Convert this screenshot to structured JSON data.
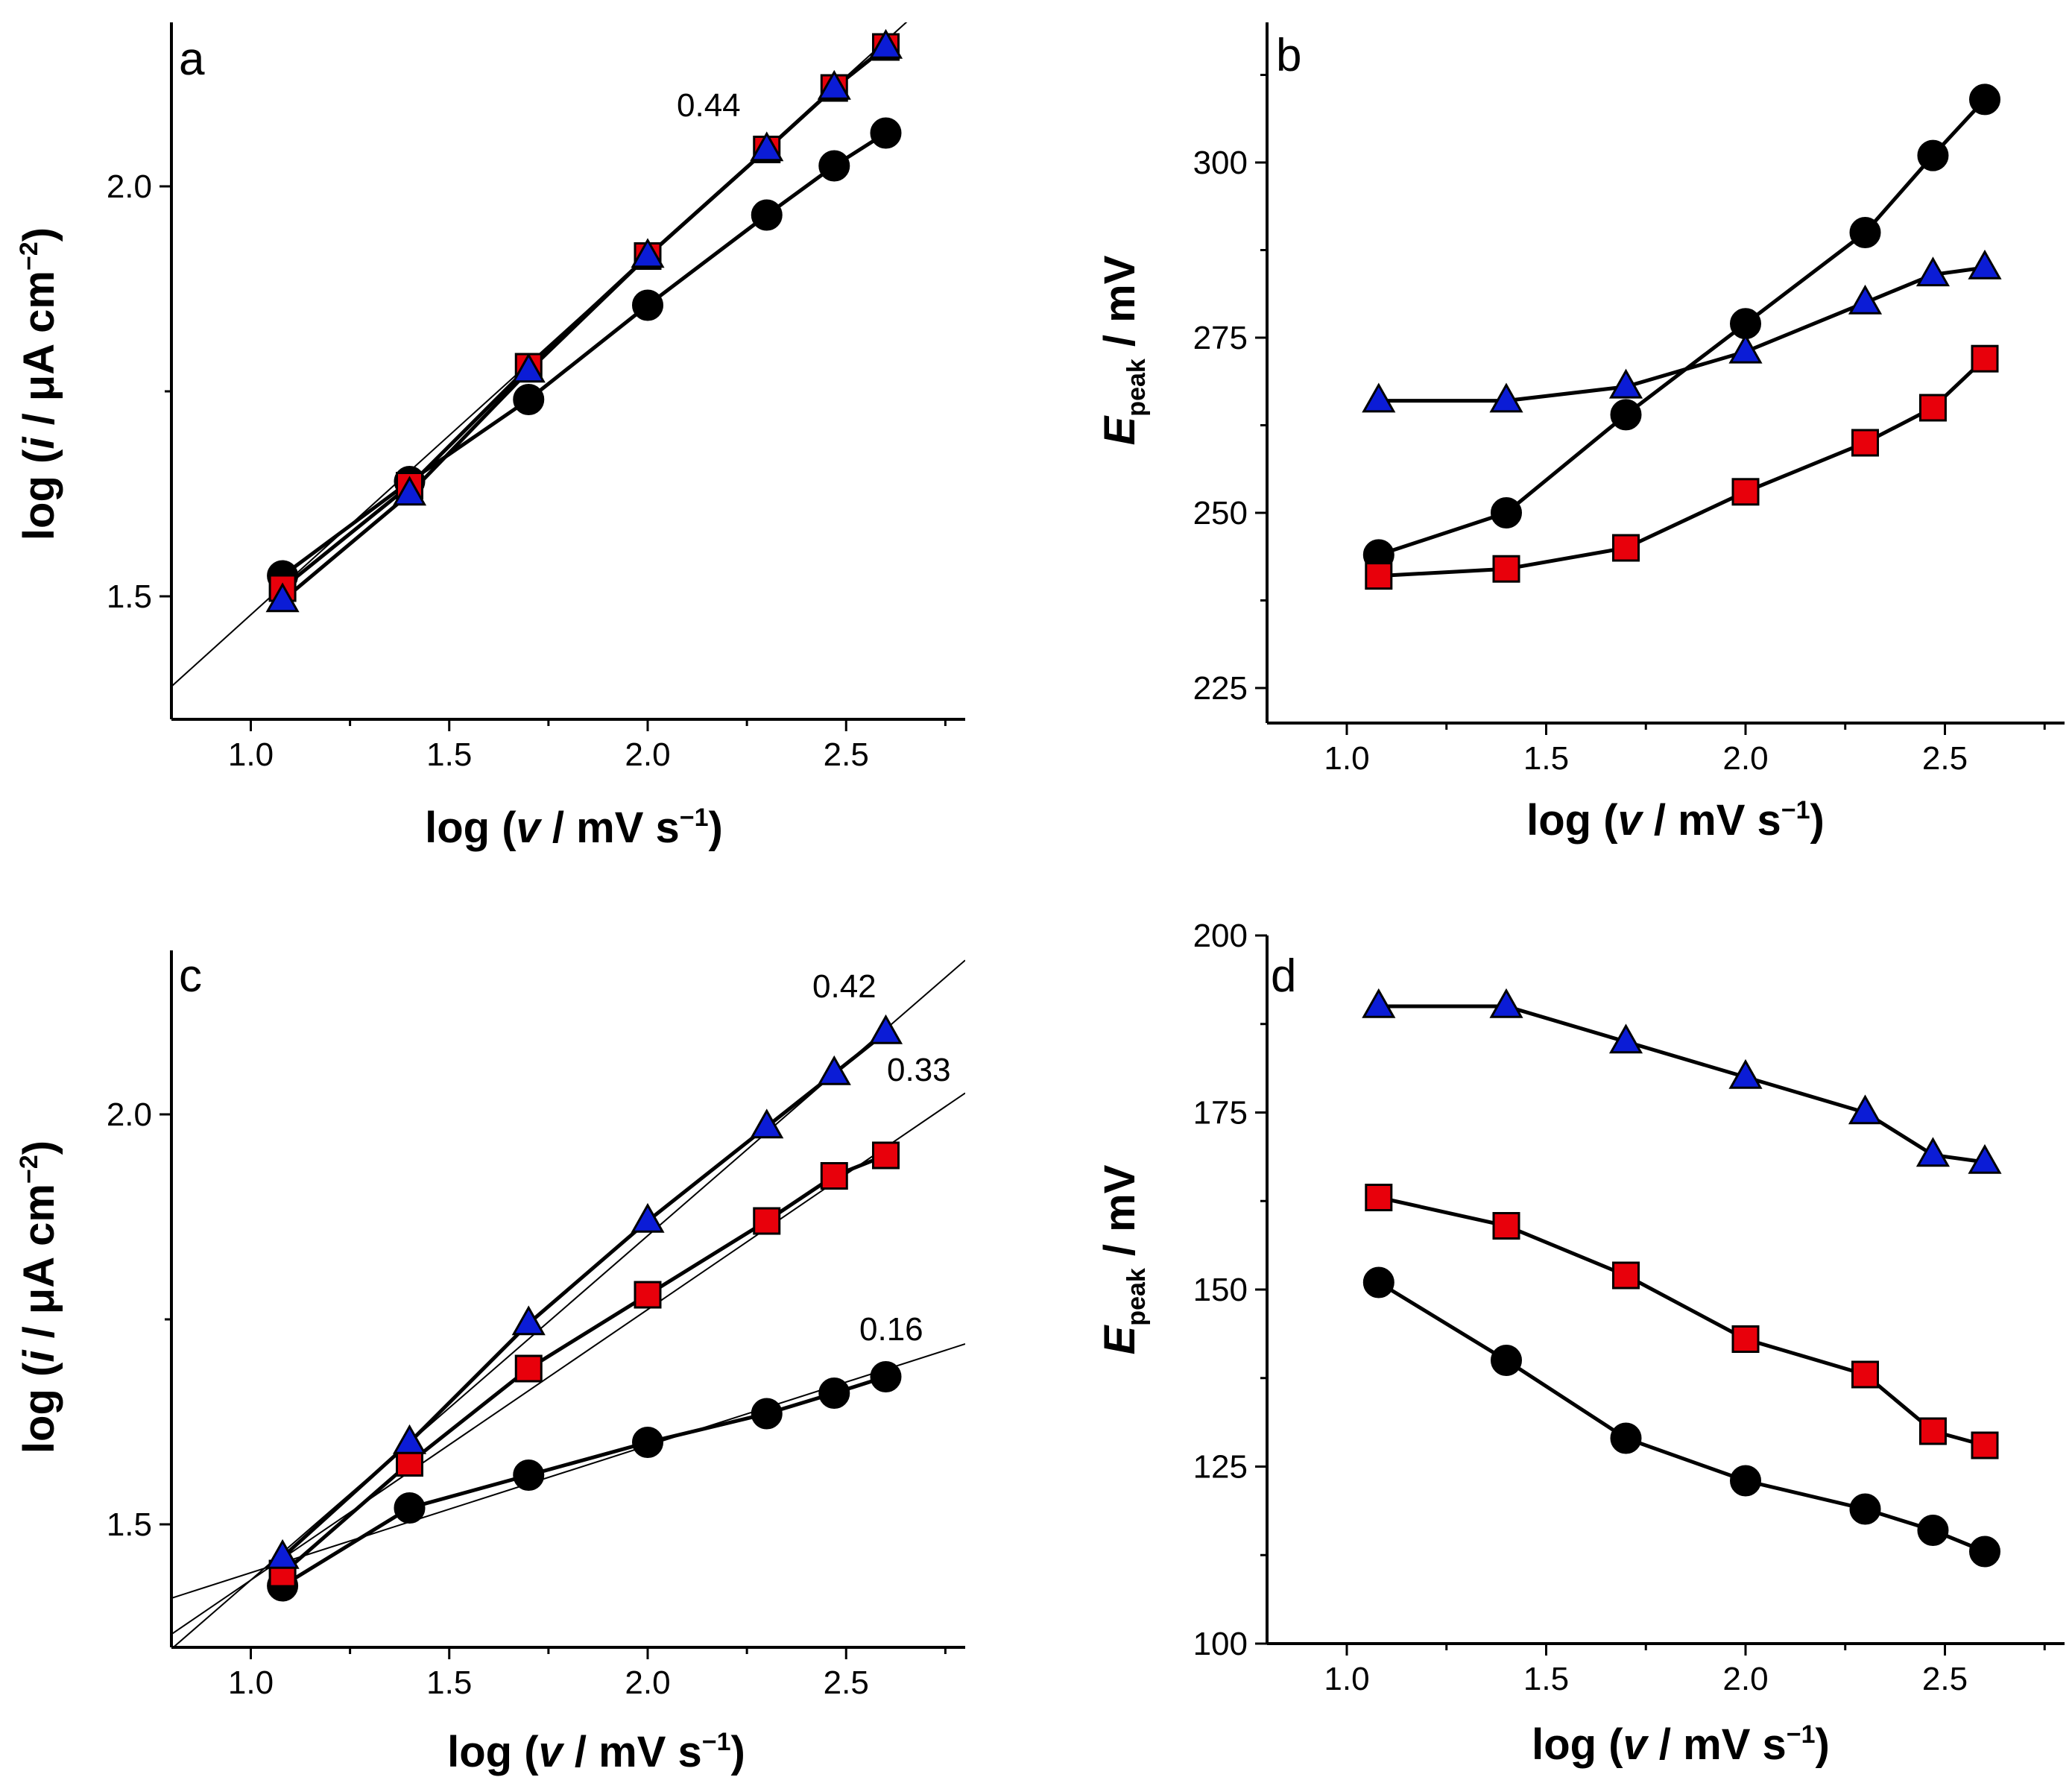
{
  "chart_data": [
    {
      "panel": "a",
      "type": "line",
      "xlabel": "log (v / mV s−1)",
      "ylabel": "log (i / μA cm−2)",
      "xlim": [
        0.8,
        2.8
      ],
      "ylim": [
        1.35,
        2.2
      ],
      "xticks": [
        1.0,
        1.5,
        2.0,
        2.5
      ],
      "xtick_labels": [
        "1.0",
        "1.5",
        "2.0",
        "2.5"
      ],
      "yticks": [
        1.5,
        2.0
      ],
      "ytick_labels": [
        "1.5",
        "2.0"
      ],
      "x": [
        1.08,
        1.4,
        1.7,
        2.0,
        2.3,
        2.47,
        2.6
      ],
      "series": [
        {
          "name": "circle",
          "marker": "circle",
          "color": "#000000",
          "values": [
            1.525,
            1.64,
            1.74,
            1.855,
            1.965,
            2.025,
            2.065
          ]
        },
        {
          "name": "square",
          "marker": "square",
          "color": "#e8000b",
          "values": [
            1.51,
            1.635,
            1.78,
            1.915,
            2.045,
            2.12,
            2.17
          ]
        },
        {
          "name": "triangle",
          "marker": "triangle",
          "color": "#0b1cd6",
          "values": [
            1.495,
            1.625,
            1.775,
            1.915,
            2.045,
            2.12,
            2.17
          ]
        }
      ],
      "fit_lines": [
        {
          "slope_label": "0.44",
          "points": [
            [
              0.8,
              1.39
            ],
            [
              2.8,
              2.265
            ]
          ]
        }
      ]
    },
    {
      "panel": "b",
      "type": "line",
      "xlabel": "log (v / mV s−1)",
      "ylabel": "Epeak / mV",
      "xlim": [
        0.8,
        2.8
      ],
      "ylim": [
        220,
        320
      ],
      "xticks": [
        1.0,
        1.5,
        2.0,
        2.5
      ],
      "xtick_labels": [
        "1.0",
        "1.5",
        "2.0",
        "2.5"
      ],
      "yticks": [
        225,
        250,
        275,
        300
      ],
      "ytick_labels": [
        "225",
        "250",
        "275",
        "300"
      ],
      "x": [
        1.08,
        1.4,
        1.7,
        2.0,
        2.3,
        2.47,
        2.6
      ],
      "series": [
        {
          "name": "circle",
          "marker": "circle",
          "color": "#000000",
          "values": [
            244,
            250,
            264,
            277,
            290,
            301,
            309
          ]
        },
        {
          "name": "square",
          "marker": "square",
          "color": "#e8000b",
          "values": [
            241,
            242,
            245,
            253,
            260,
            265,
            272
          ]
        },
        {
          "name": "triangle",
          "marker": "triangle",
          "color": "#0b1cd6",
          "values": [
            266,
            266,
            268,
            273,
            280,
            284,
            285
          ]
        }
      ]
    },
    {
      "panel": "c",
      "type": "line",
      "xlabel": "log (v / mV s−1)",
      "ylabel": "log (i / μA cm−2)",
      "xlim": [
        0.8,
        2.8
      ],
      "ylim": [
        1.35,
        2.2
      ],
      "xticks": [
        1.0,
        1.5,
        2.0,
        2.5
      ],
      "xtick_labels": [
        "1.0",
        "1.5",
        "2.0",
        "2.5"
      ],
      "yticks": [
        1.5,
        2.0
      ],
      "ytick_labels": [
        "1.5",
        "2.0"
      ],
      "x": [
        1.08,
        1.4,
        1.7,
        2.0,
        2.3,
        2.47,
        2.6
      ],
      "series": [
        {
          "name": "circle",
          "marker": "circle",
          "color": "#000000",
          "values": [
            1.425,
            1.52,
            1.56,
            1.6,
            1.635,
            1.66,
            1.68
          ]
        },
        {
          "name": "square",
          "marker": "square",
          "color": "#e8000b",
          "values": [
            1.44,
            1.575,
            1.69,
            1.78,
            1.87,
            1.925,
            1.95
          ]
        },
        {
          "name": "triangle",
          "marker": "triangle",
          "color": "#0b1cd6",
          "values": [
            1.46,
            1.6,
            1.745,
            1.87,
            1.985,
            2.05,
            2.1
          ]
        }
      ],
      "fit_lines": [
        {
          "slope_label": "0.42",
          "points": [
            [
              0.8,
              1.348
            ],
            [
              2.8,
              2.188
            ]
          ]
        },
        {
          "slope_label": "0.33",
          "points": [
            [
              0.8,
              1.366
            ],
            [
              2.8,
              2.026
            ]
          ]
        },
        {
          "slope_label": "0.16",
          "points": [
            [
              0.8,
              1.41
            ],
            [
              2.8,
              1.72
            ]
          ]
        }
      ]
    },
    {
      "panel": "d",
      "type": "line",
      "xlabel": "log (v / mV s−1)",
      "ylabel": "Epeak / mV",
      "xlim": [
        0.8,
        2.8
      ],
      "ylim": [
        100,
        200
      ],
      "xticks": [
        1.0,
        1.5,
        2.0,
        2.5
      ],
      "xtick_labels": [
        "1.0",
        "1.5",
        "2.0",
        "2.5"
      ],
      "yticks": [
        100,
        125,
        150,
        175,
        200
      ],
      "ytick_labels": [
        "100",
        "125",
        "150",
        "175",
        "200"
      ],
      "x": [
        1.08,
        1.4,
        1.7,
        2.0,
        2.3,
        2.47,
        2.6
      ],
      "series": [
        {
          "name": "circle",
          "marker": "circle",
          "color": "#000000",
          "values": [
            151,
            140,
            129,
            123,
            119,
            116,
            113
          ]
        },
        {
          "name": "square",
          "marker": "square",
          "color": "#e8000b",
          "values": [
            163,
            159,
            152,
            143,
            138,
            130,
            128
          ]
        },
        {
          "name": "triangle",
          "marker": "triangle",
          "color": "#0b1cd6",
          "values": [
            190,
            190,
            185,
            180,
            175,
            169,
            168
          ]
        }
      ]
    }
  ]
}
